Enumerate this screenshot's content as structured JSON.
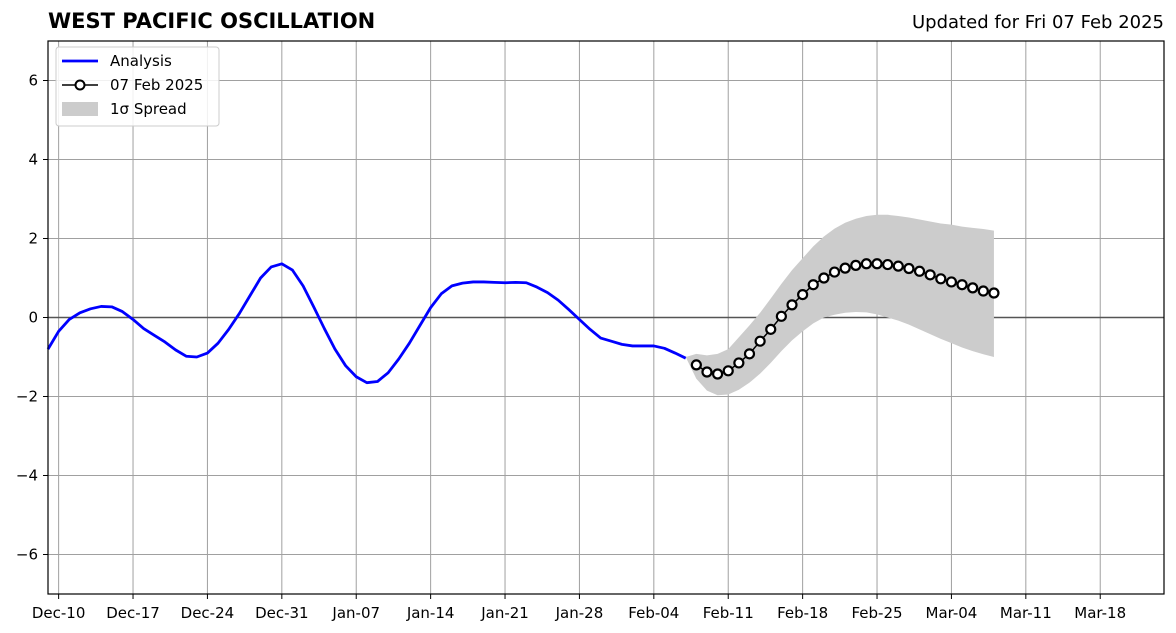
{
  "chart_data": {
    "type": "line",
    "title": "WEST PACIFIC OSCILLATION",
    "subtitle": "Updated for Fri 07 Feb 2025",
    "xlabel": "",
    "ylabel": "",
    "xlim": [
      "2024-12-09",
      "2025-03-24"
    ],
    "ylim": [
      -7,
      7
    ],
    "yticks": [
      -6,
      -4,
      -2,
      0,
      2,
      4,
      6
    ],
    "ytick_labels": [
      "−6",
      "−4",
      "−2",
      "0",
      "2",
      "4",
      "6"
    ],
    "xticks": [
      "2024-12-10",
      "2024-12-17",
      "2024-12-24",
      "2024-12-31",
      "2025-01-07",
      "2025-01-14",
      "2025-01-21",
      "2025-01-28",
      "2025-02-04",
      "2025-02-11",
      "2025-02-18",
      "2025-02-25",
      "2025-03-04",
      "2025-03-11",
      "2025-03-18"
    ],
    "xtick_labels": [
      "Dec-10",
      "Dec-17",
      "Dec-24",
      "Dec-31",
      "Jan-07",
      "Jan-14",
      "Jan-21",
      "Jan-28",
      "Feb-04",
      "Feb-11",
      "Feb-18",
      "Feb-25",
      "Mar-04",
      "Mar-11",
      "Mar-18"
    ],
    "grid": true,
    "zero_line": true,
    "legend": {
      "placement": "top-left",
      "entries": [
        {
          "label": "Analysis",
          "kind": "line",
          "color": "#0000ff"
        },
        {
          "label": "07 Feb 2025",
          "kind": "line-marker",
          "color": "#000000"
        },
        {
          "label": "1σ Spread",
          "kind": "patch",
          "color": "#cccccc"
        }
      ]
    },
    "series": [
      {
        "name": "Analysis",
        "color": "#0000ff",
        "x": [
          "2024-12-09",
          "2024-12-10",
          "2024-12-11",
          "2024-12-12",
          "2024-12-13",
          "2024-12-14",
          "2024-12-15",
          "2024-12-16",
          "2024-12-17",
          "2024-12-18",
          "2024-12-19",
          "2024-12-20",
          "2024-12-21",
          "2024-12-22",
          "2024-12-23",
          "2024-12-24",
          "2024-12-25",
          "2024-12-26",
          "2024-12-27",
          "2024-12-28",
          "2024-12-29",
          "2024-12-30",
          "2024-12-31",
          "2025-01-01",
          "2025-01-02",
          "2025-01-03",
          "2025-01-04",
          "2025-01-05",
          "2025-01-06",
          "2025-01-07",
          "2025-01-08",
          "2025-01-09",
          "2025-01-10",
          "2025-01-11",
          "2025-01-12",
          "2025-01-13",
          "2025-01-14",
          "2025-01-15",
          "2025-01-16",
          "2025-01-17",
          "2025-01-18",
          "2025-01-19",
          "2025-01-20",
          "2025-01-21",
          "2025-01-22",
          "2025-01-23",
          "2025-01-24",
          "2025-01-25",
          "2025-01-26",
          "2025-01-27",
          "2025-01-28",
          "2025-01-29",
          "2025-01-30",
          "2025-01-31",
          "2025-02-01",
          "2025-02-02",
          "2025-02-03",
          "2025-02-04",
          "2025-02-05",
          "2025-02-06",
          "2025-02-07"
        ],
        "y": [
          -0.8,
          -0.35,
          -0.05,
          0.12,
          0.22,
          0.28,
          0.27,
          0.15,
          -0.05,
          -0.28,
          -0.45,
          -0.62,
          -0.82,
          -0.98,
          -1.0,
          -0.9,
          -0.65,
          -0.3,
          0.1,
          0.55,
          1.0,
          1.28,
          1.36,
          1.2,
          0.8,
          0.27,
          -0.28,
          -0.8,
          -1.22,
          -1.5,
          -1.65,
          -1.62,
          -1.4,
          -1.05,
          -0.65,
          -0.2,
          0.25,
          0.6,
          0.8,
          0.87,
          0.9,
          0.9,
          0.89,
          0.88,
          0.89,
          0.88,
          0.77,
          0.63,
          0.44,
          0.2,
          -0.05,
          -0.3,
          -0.52,
          -0.6,
          -0.68,
          -0.72,
          -0.72,
          -0.72,
          -0.78,
          -0.9,
          -1.03
        ]
      },
      {
        "name": "07 Feb 2025",
        "color": "#000000",
        "marker": "circle-open",
        "x": [
          "2025-02-08",
          "2025-02-09",
          "2025-02-10",
          "2025-02-11",
          "2025-02-12",
          "2025-02-13",
          "2025-02-14",
          "2025-02-15",
          "2025-02-16",
          "2025-02-17",
          "2025-02-18",
          "2025-02-19",
          "2025-02-20",
          "2025-02-21",
          "2025-02-22",
          "2025-02-23",
          "2025-02-24",
          "2025-02-25",
          "2025-02-26",
          "2025-02-27",
          "2025-02-28",
          "2025-03-01",
          "2025-03-02",
          "2025-03-03",
          "2025-03-04",
          "2025-03-05",
          "2025-03-06",
          "2025-03-07",
          "2025-03-08"
        ],
        "y": [
          -1.2,
          -1.38,
          -1.43,
          -1.35,
          -1.15,
          -0.92,
          -0.6,
          -0.3,
          0.03,
          0.32,
          0.58,
          0.83,
          1.0,
          1.15,
          1.25,
          1.32,
          1.36,
          1.36,
          1.34,
          1.3,
          1.24,
          1.17,
          1.08,
          0.98,
          0.9,
          0.83,
          0.75,
          0.67,
          0.62
        ]
      }
    ],
    "spread": {
      "name": "1σ Spread",
      "color": "#cccccc",
      "x": [
        "2025-02-07",
        "2025-02-08",
        "2025-02-09",
        "2025-02-10",
        "2025-02-11",
        "2025-02-12",
        "2025-02-13",
        "2025-02-14",
        "2025-02-15",
        "2025-02-16",
        "2025-02-17",
        "2025-02-18",
        "2025-02-19",
        "2025-02-20",
        "2025-02-21",
        "2025-02-22",
        "2025-02-23",
        "2025-02-24",
        "2025-02-25",
        "2025-02-26",
        "2025-02-27",
        "2025-02-28",
        "2025-03-01",
        "2025-03-02",
        "2025-03-03",
        "2025-03-04",
        "2025-03-05",
        "2025-03-06",
        "2025-03-07",
        "2025-03-08"
      ],
      "upper": [
        -1.0,
        -0.92,
        -0.96,
        -0.92,
        -0.8,
        -0.5,
        -0.2,
        0.12,
        0.48,
        0.85,
        1.2,
        1.5,
        1.8,
        2.05,
        2.25,
        2.4,
        2.5,
        2.57,
        2.6,
        2.6,
        2.57,
        2.53,
        2.48,
        2.43,
        2.38,
        2.35,
        2.3,
        2.27,
        2.24,
        2.2
      ],
      "lower": [
        -1.0,
        -1.55,
        -1.85,
        -1.97,
        -1.95,
        -1.83,
        -1.65,
        -1.42,
        -1.15,
        -0.85,
        -0.58,
        -0.35,
        -0.15,
        0.0,
        0.07,
        0.12,
        0.14,
        0.13,
        0.08,
        0.0,
        -0.08,
        -0.18,
        -0.3,
        -0.42,
        -0.54,
        -0.65,
        -0.76,
        -0.85,
        -0.93,
        -1.0
      ]
    }
  }
}
